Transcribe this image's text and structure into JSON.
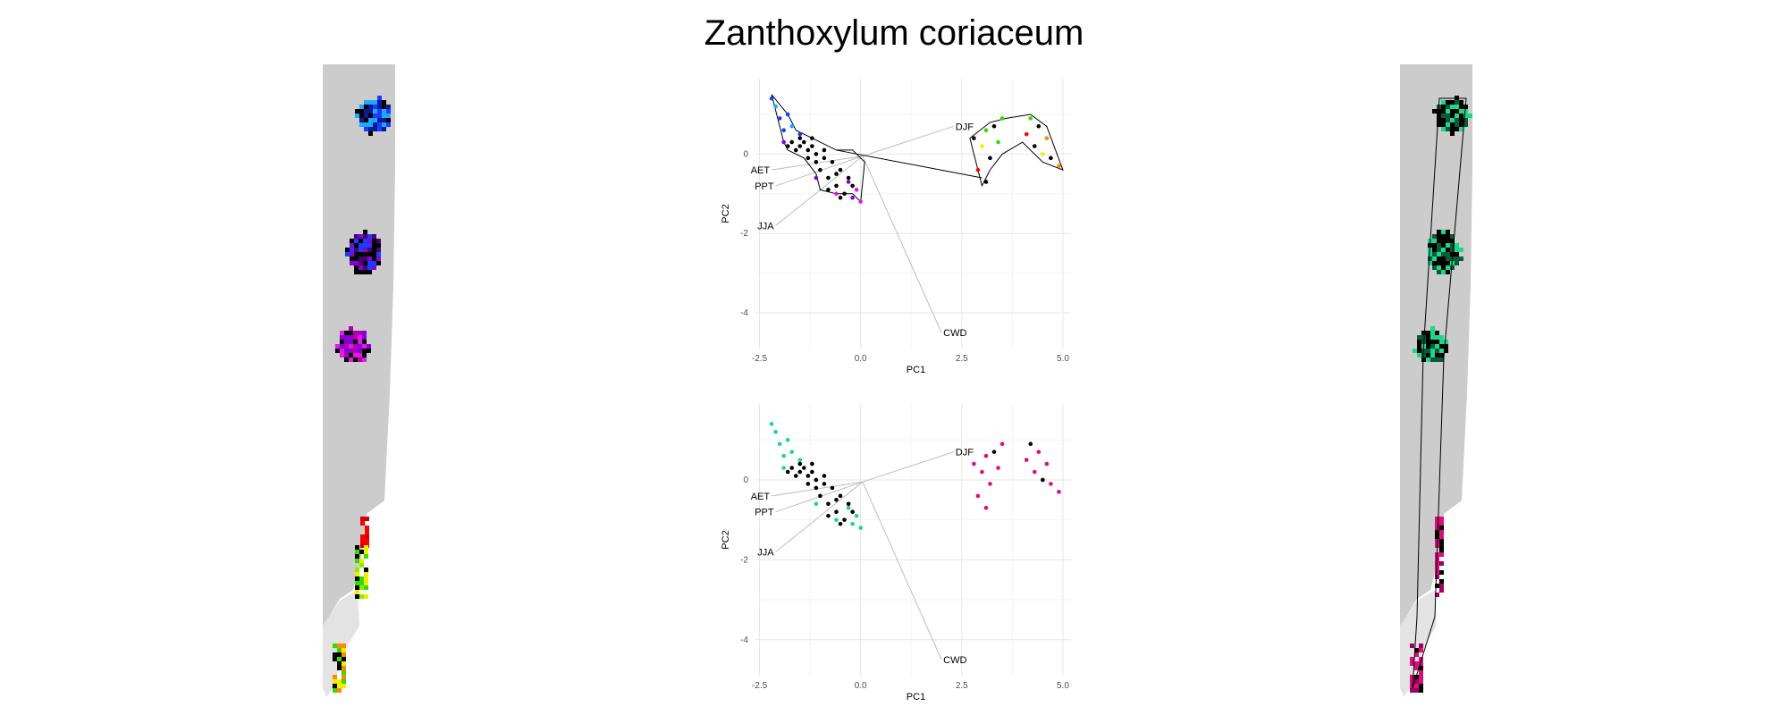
{
  "title": "Zanthoxylum coriaceum",
  "colors": {
    "land": "#cccccc",
    "black": "#000000",
    "blue": "#1a3cff",
    "cyan": "#1ea8ff",
    "purple": "#8a00d4",
    "magenta": "#e01ae0",
    "red": "#ff0000",
    "green": "#33dd00",
    "yellow": "#eeee00",
    "orange": "#ff8800",
    "teal": "#1ed68a",
    "pink": "#d6117a"
  },
  "chart_data": [
    {
      "type": "scatter",
      "panel": "top",
      "xlabel": "PC1",
      "ylabel": "PC2",
      "xlim": [
        -2.6,
        5.2
      ],
      "ylim": [
        -4.9,
        1.9
      ],
      "xticks": [
        "-2.5",
        "0.0",
        "2.5",
        "5.0"
      ],
      "yticks": [
        "0",
        "-2",
        "-4"
      ],
      "xtick_values": [
        -2.5,
        0,
        2.5,
        5.0
      ],
      "ytick_values": [
        0,
        -2,
        -4
      ],
      "grid": true,
      "vectors": [
        {
          "label": "DJF",
          "x": 2.3,
          "y": 0.7
        },
        {
          "label": "AET",
          "x": -2.2,
          "y": -0.4
        },
        {
          "label": "PPT",
          "x": -2.1,
          "y": -0.8
        },
        {
          "label": "JJA",
          "x": -2.1,
          "y": -1.8
        },
        {
          "label": "CWD",
          "x": 2.0,
          "y": -4.5
        }
      ],
      "points_left_black": [
        [
          -1.7,
          0.3
        ],
        [
          -1.5,
          0.2
        ],
        [
          -1.3,
          0.1
        ],
        [
          -1.1,
          0.0
        ],
        [
          -1.4,
          0.3
        ],
        [
          -1.2,
          0.2
        ],
        [
          -0.9,
          -0.1
        ],
        [
          -0.7,
          -0.2
        ],
        [
          -0.5,
          -0.4
        ],
        [
          -0.3,
          -0.6
        ],
        [
          -1.0,
          -0.4
        ],
        [
          -0.8,
          -0.6
        ],
        [
          -0.6,
          -0.8
        ],
        [
          -0.4,
          -1.0
        ],
        [
          -1.6,
          0.1
        ],
        [
          -1.8,
          0.2
        ],
        [
          -0.2,
          -0.8
        ],
        [
          -0.6,
          -0.5
        ],
        [
          -1.1,
          -0.2
        ],
        [
          -0.9,
          0.1
        ],
        [
          -1.3,
          -0.1
        ],
        [
          -0.8,
          -0.9
        ],
        [
          -0.5,
          -1.1
        ],
        [
          -1.5,
          0.4
        ],
        [
          -1.2,
          0.4
        ]
      ],
      "points_left_color": [
        [
          -1.9,
          0.6,
          "#1a3cff"
        ],
        [
          -2.0,
          0.9,
          "#1a3cff"
        ],
        [
          -2.1,
          1.2,
          "#1ea8ff"
        ],
        [
          -1.8,
          1.0,
          "#1a3cff"
        ],
        [
          -1.7,
          0.7,
          "#1ea8ff"
        ],
        [
          -2.2,
          1.4,
          "#1a3cff"
        ],
        [
          -1.9,
          0.3,
          "#8a00d4"
        ],
        [
          -1.5,
          0.5,
          "#1a3cff"
        ],
        [
          -0.1,
          -0.9,
          "#e01ae0"
        ],
        [
          -0.2,
          -1.1,
          "#8a00d4"
        ],
        [
          -0.6,
          -1.0,
          "#e01ae0"
        ],
        [
          -1.1,
          -0.6,
          "#8a00d4"
        ],
        [
          0.0,
          -1.2,
          "#e01ae0"
        ],
        [
          -0.3,
          -0.7,
          "#8a00d4"
        ]
      ],
      "points_right": [
        [
          2.8,
          0.4,
          "#000000"
        ],
        [
          3.1,
          0.6,
          "#33dd00"
        ],
        [
          3.3,
          0.7,
          "#000000"
        ],
        [
          3.5,
          0.9,
          "#33dd00"
        ],
        [
          3.0,
          0.2,
          "#eeee00"
        ],
        [
          3.2,
          -0.1,
          "#000000"
        ],
        [
          2.9,
          -0.4,
          "#ff0000"
        ],
        [
          3.1,
          -0.7,
          "#000000"
        ],
        [
          4.2,
          0.9,
          "#33dd00"
        ],
        [
          4.4,
          0.7,
          "#000000"
        ],
        [
          4.6,
          0.4,
          "#ff8800"
        ],
        [
          4.3,
          0.2,
          "#000000"
        ],
        [
          4.5,
          0.0,
          "#eeee00"
        ],
        [
          4.9,
          -0.3,
          "#ff8800"
        ],
        [
          4.7,
          -0.1,
          "#000000"
        ],
        [
          3.4,
          0.3,
          "#33dd00"
        ],
        [
          4.1,
          0.5,
          "#ff0000"
        ]
      ],
      "hull_left": [
        [
          -2.2,
          1.5
        ],
        [
          -1.8,
          1.0
        ],
        [
          -1.6,
          0.6
        ],
        [
          -1.2,
          0.4
        ],
        [
          -0.6,
          0.1
        ],
        [
          -0.2,
          0.1
        ],
        [
          0.1,
          -0.2
        ],
        [
          0.0,
          -1.2
        ],
        [
          -0.2,
          -1.0
        ],
        [
          -0.6,
          -1.0
        ],
        [
          -1.0,
          -0.9
        ],
        [
          -1.1,
          -0.5
        ],
        [
          -1.4,
          -0.1
        ],
        [
          -1.8,
          0.1
        ],
        [
          -1.9,
          0.3
        ]
      ],
      "hull_right": [
        [
          2.7,
          0.4
        ],
        [
          3.2,
          0.8
        ],
        [
          3.6,
          0.9
        ],
        [
          4.2,
          1.0
        ],
        [
          4.6,
          0.7
        ],
        [
          5.0,
          -0.4
        ],
        [
          4.5,
          -0.2
        ],
        [
          4.0,
          0.3
        ],
        [
          3.5,
          0.0
        ],
        [
          3.2,
          -0.4
        ],
        [
          3.0,
          -0.8
        ],
        [
          2.9,
          -0.4
        ]
      ],
      "connector": [
        [
          -0.6,
          0.1
        ],
        [
          3.0,
          -0.6
        ]
      ]
    },
    {
      "type": "scatter",
      "panel": "bottom",
      "xlabel": "PC1",
      "ylabel": "PC2",
      "xlim": [
        -2.6,
        5.2
      ],
      "ylim": [
        -4.9,
        1.9
      ],
      "xticks": [
        "-2.5",
        "0.0",
        "2.5",
        "5.0"
      ],
      "yticks": [
        "0",
        "-2",
        "-4"
      ],
      "xtick_values": [
        -2.5,
        0,
        2.5,
        5.0
      ],
      "ytick_values": [
        0,
        -2,
        -4
      ],
      "grid": true,
      "vectors": [
        {
          "label": "DJF",
          "x": 2.3,
          "y": 0.7
        },
        {
          "label": "AET",
          "x": -2.2,
          "y": -0.4
        },
        {
          "label": "PPT",
          "x": -2.1,
          "y": -0.8
        },
        {
          "label": "JJA",
          "x": -2.1,
          "y": -1.8
        },
        {
          "label": "CWD",
          "x": 2.0,
          "y": -4.5
        }
      ],
      "points_left_black": [
        [
          -1.7,
          0.3
        ],
        [
          -1.5,
          0.2
        ],
        [
          -1.3,
          0.1
        ],
        [
          -1.1,
          0.0
        ],
        [
          -1.4,
          0.3
        ],
        [
          -1.2,
          0.2
        ],
        [
          -0.9,
          -0.1
        ],
        [
          -0.7,
          -0.2
        ],
        [
          -0.5,
          -0.4
        ],
        [
          -0.3,
          -0.6
        ],
        [
          -1.0,
          -0.4
        ],
        [
          -0.8,
          -0.6
        ],
        [
          -0.6,
          -0.8
        ],
        [
          -0.4,
          -1.0
        ],
        [
          -1.6,
          0.1
        ],
        [
          -1.8,
          0.2
        ],
        [
          -0.2,
          -0.8
        ],
        [
          -0.6,
          -0.5
        ],
        [
          -1.1,
          -0.2
        ],
        [
          -0.9,
          0.1
        ],
        [
          -1.3,
          -0.1
        ],
        [
          -0.8,
          -0.9
        ],
        [
          -0.5,
          -1.1
        ],
        [
          -1.5,
          0.4
        ],
        [
          -1.2,
          0.4
        ]
      ],
      "points_left_color": [
        [
          -1.9,
          0.6,
          "#1ed68a"
        ],
        [
          -2.0,
          0.9,
          "#1ed68a"
        ],
        [
          -2.1,
          1.2,
          "#1ed68a"
        ],
        [
          -1.8,
          1.0,
          "#1ed68a"
        ],
        [
          -1.7,
          0.7,
          "#1ed68a"
        ],
        [
          -2.2,
          1.4,
          "#1ed68a"
        ],
        [
          -1.9,
          0.3,
          "#1ed68a"
        ],
        [
          -1.5,
          0.5,
          "#1ed68a"
        ],
        [
          -0.1,
          -0.9,
          "#1ed68a"
        ],
        [
          -0.2,
          -1.1,
          "#1ed68a"
        ],
        [
          -0.6,
          -1.0,
          "#1ed68a"
        ],
        [
          -1.1,
          -0.6,
          "#1ed68a"
        ],
        [
          0.0,
          -1.2,
          "#1ed68a"
        ],
        [
          -0.3,
          -0.7,
          "#1ed68a"
        ]
      ],
      "points_right": [
        [
          2.8,
          0.4,
          "#d6117a"
        ],
        [
          3.1,
          0.6,
          "#d6117a"
        ],
        [
          3.3,
          0.7,
          "#000000"
        ],
        [
          3.5,
          0.9,
          "#d6117a"
        ],
        [
          3.0,
          0.2,
          "#d6117a"
        ],
        [
          3.2,
          -0.1,
          "#d6117a"
        ],
        [
          2.9,
          -0.4,
          "#d6117a"
        ],
        [
          3.1,
          -0.7,
          "#d6117a"
        ],
        [
          4.2,
          0.9,
          "#000000"
        ],
        [
          4.4,
          0.7,
          "#d6117a"
        ],
        [
          4.6,
          0.4,
          "#d6117a"
        ],
        [
          4.3,
          0.2,
          "#d6117a"
        ],
        [
          4.5,
          0.0,
          "#000000"
        ],
        [
          4.9,
          -0.3,
          "#d6117a"
        ],
        [
          4.7,
          -0.1,
          "#d6117a"
        ],
        [
          3.4,
          0.3,
          "#d6117a"
        ],
        [
          4.1,
          0.5,
          "#d6117a"
        ]
      ],
      "hull_left": [],
      "hull_right": [],
      "connector": []
    }
  ]
}
